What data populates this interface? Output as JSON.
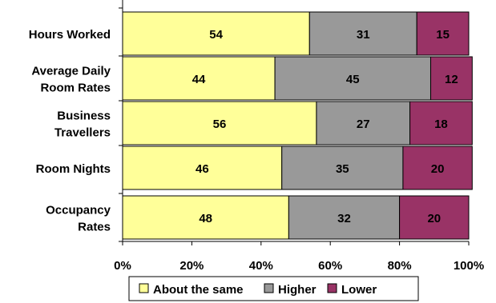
{
  "chart_data": {
    "type": "bar",
    "orientation": "horizontal",
    "stacked": true,
    "categories": [
      "Hours Worked",
      "Average Daily Room Rates",
      "Business Travellers",
      "Room Nights",
      "Occupancy Rates"
    ],
    "category_lines": [
      [
        "Hours Worked"
      ],
      [
        "Average Daily",
        "Room Rates"
      ],
      [
        "Business",
        "Travellers"
      ],
      [
        "Room Nights"
      ],
      [
        "Occupancy",
        "Rates"
      ]
    ],
    "series": [
      {
        "name": "About the same",
        "color": "#FFFF99",
        "values": [
          54,
          44,
          56,
          46,
          48
        ]
      },
      {
        "name": "Higher",
        "color": "#999999",
        "values": [
          31,
          45,
          27,
          35,
          32
        ]
      },
      {
        "name": "Lower",
        "color": "#993366",
        "values": [
          15,
          12,
          18,
          20,
          20
        ]
      }
    ],
    "xlim": [
      0,
      100
    ],
    "xticks": [
      "0%",
      "20%",
      "40%",
      "60%",
      "80%",
      "100%"
    ],
    "grid": false,
    "legend_position": "bottom"
  }
}
